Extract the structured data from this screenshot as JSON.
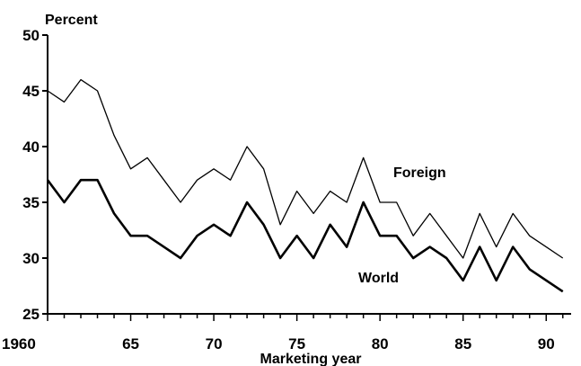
{
  "chart_data": {
    "type": "line",
    "title": "",
    "ylabel": "Percent",
    "xlabel": "Marketing year",
    "xlim": [
      1960,
      1991.5
    ],
    "ylim": [
      25,
      50
    ],
    "x_ticks": [
      1960,
      1965,
      1970,
      1975,
      1980,
      1985,
      1990
    ],
    "x_tick_labels": [
      "1960",
      "65",
      "70",
      "75",
      "80",
      "85",
      "90"
    ],
    "y_ticks": [
      25,
      30,
      35,
      40,
      45,
      50
    ],
    "y_tick_labels": [
      "25",
      "30",
      "35",
      "40",
      "45",
      "50"
    ],
    "grid": false,
    "x": [
      1960,
      1961,
      1962,
      1963,
      1964,
      1965,
      1966,
      1967,
      1968,
      1969,
      1970,
      1971,
      1972,
      1973,
      1974,
      1975,
      1976,
      1977,
      1978,
      1979,
      1980,
      1981,
      1982,
      1983,
      1984,
      1985,
      1986,
      1987,
      1988,
      1989,
      1990,
      1991
    ],
    "series": [
      {
        "name": "Foreign",
        "color": "#000000",
        "values": [
          45,
          44,
          46,
          45,
          41,
          38,
          39,
          37,
          35,
          37,
          38,
          37,
          40,
          38,
          33,
          36,
          34,
          36,
          35,
          39,
          35,
          35,
          32,
          34,
          32,
          30,
          34,
          31,
          34,
          32,
          31,
          30
        ]
      },
      {
        "name": "World",
        "color": "#000000",
        "values": [
          37,
          35,
          37,
          37,
          34,
          32,
          32,
          31,
          30,
          32,
          33,
          32,
          35,
          33,
          30,
          32,
          30,
          33,
          31,
          35,
          32,
          32,
          30,
          31,
          30,
          28,
          31,
          28,
          31,
          29,
          28,
          27
        ]
      }
    ]
  }
}
